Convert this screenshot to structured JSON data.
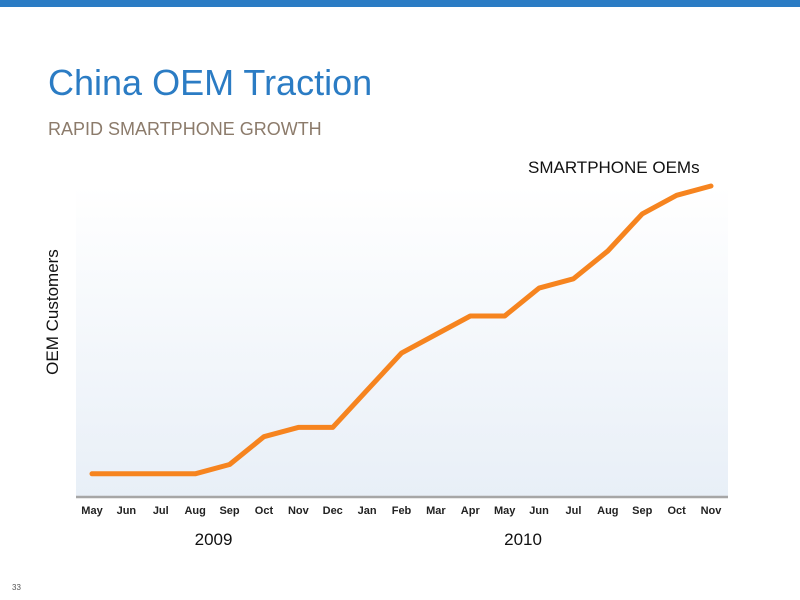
{
  "slide": {
    "title": "China OEM Traction",
    "subtitle": "RAPID SMARTPHONE GROWTH",
    "page_number": "33",
    "colors": {
      "top_bar": "#2b7cc4",
      "title": "#2b7cc4",
      "subtitle": "#8c7b6b",
      "line": "#f6841f",
      "axis": "#a6a6a6"
    }
  },
  "chart_data": {
    "type": "line",
    "ylabel": "OEM Customers",
    "xlabel": "",
    "categories": [
      "May",
      "Jun",
      "Jul",
      "Aug",
      "Sep",
      "Oct",
      "Nov",
      "Dec",
      "Jan",
      "Feb",
      "Mar",
      "Apr",
      "May",
      "Jun",
      "Jul",
      "Aug",
      "Sep",
      "Oct",
      "Nov"
    ],
    "year_labels": [
      {
        "label": "2009",
        "category_index": 4
      },
      {
        "label": "2010",
        "category_index": 13
      }
    ],
    "series": [
      {
        "name": "SMARTPHONE OEMs",
        "values": [
          1,
          1,
          1,
          1,
          2,
          5,
          6,
          6,
          10,
          14,
          16,
          18,
          18,
          21,
          22,
          25,
          29,
          31,
          32
        ]
      }
    ],
    "ylim": [
      -1.5,
      32
    ],
    "grid": false,
    "y_ticks_visible": false,
    "legend": "top-right"
  }
}
